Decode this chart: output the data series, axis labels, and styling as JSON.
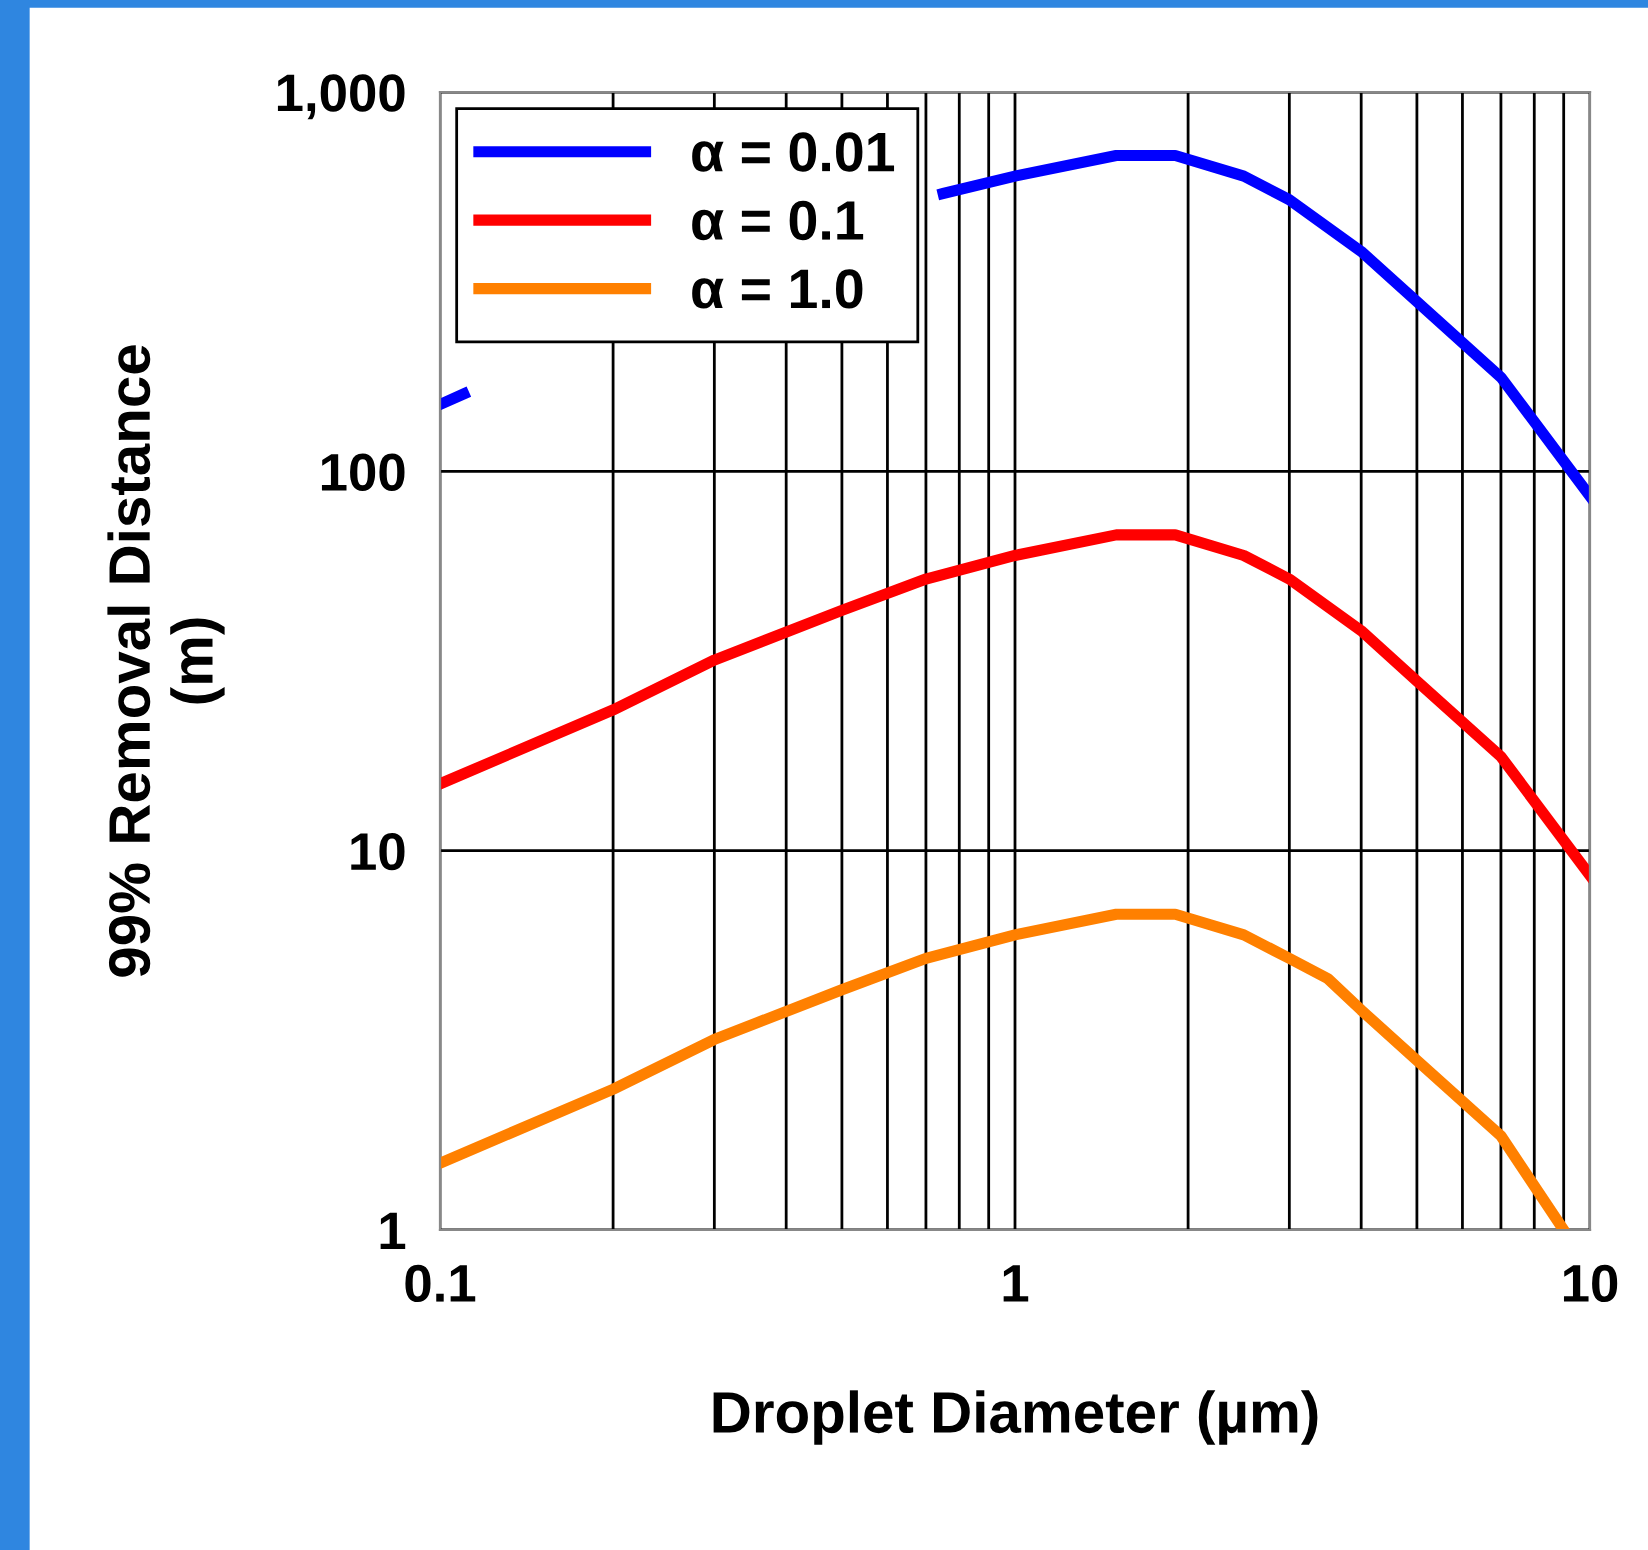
{
  "chart_data": {
    "type": "line",
    "xlabel": "Droplet Diameter (µm)",
    "ylabel": "99% Removal Distance\n(m)",
    "log": "xy",
    "grid": true,
    "legend": "top left",
    "marker": "none",
    "line_style": "solid",
    "xlim": [
      0.1,
      10
    ],
    "ylim": [
      1,
      1000
    ],
    "xticks": [
      0.1,
      1,
      10
    ],
    "yticks": [
      1,
      10,
      100,
      {
        "value": 1000,
        "label": "1,000"
      }
    ],
    "series": [
      {
        "name": "α = 0.01",
        "color": "#0000ff",
        "x": [
          0.1,
          0.11,
          0.2,
          0.3,
          0.5,
          0.7,
          0.75,
          1,
          1.5,
          1.9,
          2.5,
          3,
          4,
          5,
          7,
          10
        ],
        "values": [
          150,
          160,
          null,
          null,
          null,
          null,
          540,
          600,
          680,
          680,
          600,
          520,
          380,
          280,
          177,
          86
        ]
      },
      {
        "name": "α = 0.1",
        "color": "#ff0000",
        "x": [
          0.1,
          0.2,
          0.3,
          0.5,
          0.7,
          1,
          1.5,
          1.9,
          2.5,
          3,
          4,
          5,
          7,
          10
        ],
        "values": [
          15,
          23.5,
          31.8,
          43,
          52,
          60,
          68,
          68,
          60,
          52,
          38,
          28,
          17.7,
          8.6
        ]
      },
      {
        "name": "α = 1.0",
        "color": "#ff8000",
        "x": [
          0.1,
          0.2,
          0.3,
          0.5,
          0.7,
          1,
          1.5,
          1.9,
          2.5,
          3,
          3.5,
          4,
          5,
          7,
          9
        ],
        "values": [
          1.5,
          2.35,
          3.18,
          4.3,
          5.2,
          6,
          6.8,
          6.8,
          6,
          5.2,
          4.6,
          3.8,
          2.8,
          1.77,
          1.0
        ]
      }
    ]
  }
}
